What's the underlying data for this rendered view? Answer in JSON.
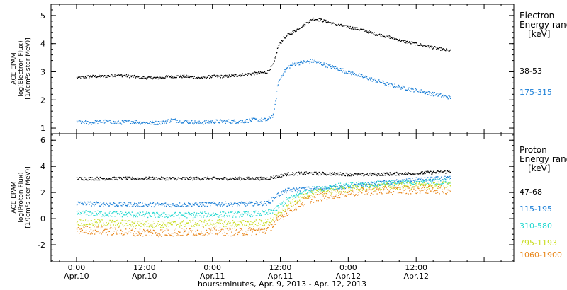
{
  "chart_data": [
    {
      "type": "scatter",
      "panel": "electron",
      "ylabel_lines": [
        "ACE EPAM",
        "log(Electron Flux)",
        "[1/(cm²s ster MeV)]"
      ],
      "yticks": [
        "1",
        "2",
        "3",
        "4",
        "5"
      ],
      "ylim": [
        0.8,
        5.4
      ],
      "legend_title": [
        "Electron",
        "Energy ranges",
        "[keV]"
      ],
      "xlim": [
        -0.1875,
        3.21875
      ],
      "series": [
        {
          "name": "38-53",
          "color": "#000000",
          "x": [
            0.0,
            0.1,
            0.2,
            0.3,
            0.4,
            0.5,
            0.6,
            0.7,
            0.8,
            0.9,
            1.0,
            1.1,
            1.2,
            1.3,
            1.4,
            1.45,
            1.48,
            1.52,
            1.56,
            1.6,
            1.66,
            1.74,
            1.8,
            1.9,
            2.0,
            2.1,
            2.2,
            2.3,
            2.4,
            2.5,
            2.6,
            2.7,
            2.75
          ],
          "y": [
            2.8,
            2.85,
            2.85,
            2.9,
            2.85,
            2.8,
            2.8,
            2.85,
            2.85,
            2.8,
            2.85,
            2.85,
            2.9,
            2.95,
            3.0,
            3.3,
            3.9,
            4.2,
            4.35,
            4.45,
            4.65,
            4.9,
            4.85,
            4.7,
            4.6,
            4.5,
            4.35,
            4.25,
            4.1,
            4.0,
            3.9,
            3.8,
            3.75
          ]
        },
        {
          "name": "175-315",
          "color": "#1a7ed6",
          "x": [
            0.0,
            0.1,
            0.2,
            0.3,
            0.4,
            0.5,
            0.6,
            0.7,
            0.8,
            0.9,
            1.0,
            1.1,
            1.2,
            1.3,
            1.4,
            1.45,
            1.48,
            1.52,
            1.56,
            1.6,
            1.66,
            1.74,
            1.8,
            1.9,
            2.0,
            2.1,
            2.2,
            2.3,
            2.4,
            2.5,
            2.6,
            2.7,
            2.75
          ],
          "y": [
            1.25,
            1.2,
            1.25,
            1.2,
            1.25,
            1.2,
            1.2,
            1.3,
            1.25,
            1.2,
            1.25,
            1.25,
            1.25,
            1.3,
            1.3,
            1.5,
            2.6,
            3.0,
            3.2,
            3.3,
            3.35,
            3.4,
            3.3,
            3.15,
            3.0,
            2.85,
            2.7,
            2.55,
            2.45,
            2.35,
            2.25,
            2.15,
            2.1
          ]
        }
      ]
    },
    {
      "type": "scatter",
      "panel": "proton",
      "ylabel_lines": [
        "ACE EPAM",
        "log(Proton Flux)",
        "[1/(cm²s ster MeV)]"
      ],
      "yticks": [
        "-2",
        "0",
        "2",
        "4",
        "6"
      ],
      "ylim": [
        -3.3,
        6.5
      ],
      "legend_title": [
        "Proton",
        "Energy ranges",
        "[keV]"
      ],
      "xlim": [
        -0.1875,
        3.21875
      ],
      "series": [
        {
          "name": "47-68",
          "color": "#000000",
          "x": [
            0.0,
            0.2,
            0.4,
            0.6,
            0.8,
            1.0,
            1.2,
            1.4,
            1.47,
            1.55,
            1.7,
            1.9,
            2.1,
            2.3,
            2.5,
            2.7,
            2.75
          ],
          "y": [
            3.1,
            3.1,
            3.1,
            3.1,
            3.1,
            3.1,
            3.1,
            3.1,
            3.25,
            3.45,
            3.5,
            3.45,
            3.4,
            3.45,
            3.5,
            3.6,
            3.65
          ]
        },
        {
          "name": "115-195",
          "color": "#1a7ed6",
          "x": [
            0.0,
            0.2,
            0.4,
            0.6,
            0.8,
            1.0,
            1.2,
            1.4,
            1.47,
            1.55,
            1.7,
            1.9,
            2.1,
            2.3,
            2.5,
            2.7,
            2.75
          ],
          "y": [
            1.2,
            1.15,
            1.1,
            1.1,
            1.1,
            1.15,
            1.15,
            1.2,
            1.8,
            2.2,
            2.3,
            2.4,
            2.6,
            2.8,
            3.0,
            3.1,
            3.1
          ]
        },
        {
          "name": "310-580",
          "color": "#22d8d0",
          "x": [
            0.0,
            0.2,
            0.4,
            0.6,
            0.8,
            1.0,
            1.2,
            1.4,
            1.47,
            1.55,
            1.7,
            1.9,
            2.1,
            2.3,
            2.5,
            2.7,
            2.75
          ],
          "y": [
            0.45,
            0.4,
            0.35,
            0.3,
            0.3,
            0.35,
            0.35,
            0.45,
            0.8,
            1.5,
            2.2,
            2.5,
            2.65,
            2.75,
            2.8,
            2.9,
            2.9
          ]
        },
        {
          "name": "795-1193",
          "color": "#c8dc1e",
          "x": [
            0.0,
            0.2,
            0.4,
            0.6,
            0.8,
            1.0,
            1.2,
            1.4,
            1.47,
            1.55,
            1.7,
            1.9,
            2.1,
            2.3,
            2.5,
            2.7,
            2.75
          ],
          "y": [
            -0.25,
            -0.3,
            -0.35,
            -0.4,
            -0.35,
            -0.3,
            -0.35,
            -0.25,
            0.2,
            1.0,
            1.9,
            2.2,
            2.4,
            2.5,
            2.55,
            2.6,
            2.6
          ]
        },
        {
          "name": "1060-1900",
          "color": "#e8861a",
          "x": [
            0.0,
            0.2,
            0.4,
            0.6,
            0.8,
            1.0,
            1.2,
            1.4,
            1.47,
            1.55,
            1.7,
            1.9,
            2.1,
            2.3,
            2.5,
            2.7,
            2.75
          ],
          "y": [
            -0.8,
            -0.9,
            -1.0,
            -1.05,
            -1.0,
            -0.95,
            -1.0,
            -0.85,
            -0.2,
            0.6,
            1.5,
            1.9,
            2.1,
            2.2,
            2.25,
            2.25,
            2.2
          ]
        }
      ]
    }
  ],
  "x_axis": {
    "ticks": [
      {
        "x": 0.0,
        "time": "0:00",
        "date": "Apr.10"
      },
      {
        "x": 0.5,
        "time": "12:00",
        "date": "Apr.10"
      },
      {
        "x": 1.0,
        "time": "0:00",
        "date": "Apr.11"
      },
      {
        "x": 1.5,
        "time": "12:00",
        "date": "Apr.11"
      },
      {
        "x": 2.0,
        "time": "0:00",
        "date": "Apr.12"
      },
      {
        "x": 2.5,
        "time": "12:00",
        "date": "Apr.12"
      }
    ],
    "label": "hours:minutes, Apr.  9, 2013 - Apr. 12, 2013"
  }
}
